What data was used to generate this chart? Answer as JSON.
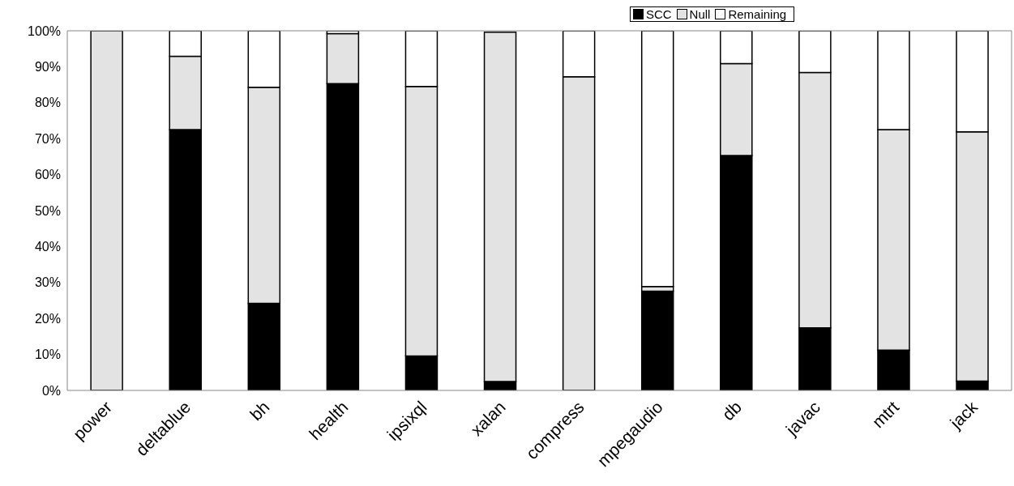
{
  "chart_data": {
    "type": "bar",
    "stacked": true,
    "categories": [
      "power",
      "deltablue",
      "bh",
      "health",
      "ipsixql",
      "xalan",
      "compress",
      "mpegaudio",
      "db",
      "javac",
      "mtrt",
      "jack"
    ],
    "series": [
      {
        "name": "SCC",
        "color": "#000000",
        "values": [
          0,
          72.5,
          24.2,
          85.3,
          9.6,
          2.5,
          null,
          27.6,
          65.3,
          17.4,
          11.2,
          2.6
        ]
      },
      {
        "name": "Null",
        "color": "#e3e3e3",
        "values": [
          100,
          20.4,
          60.1,
          13.9,
          74.9,
          97.1,
          87.2,
          1.3,
          25.6,
          71.0,
          61.3,
          69.3
        ]
      },
      {
        "name": "Remaining",
        "color": "#ffffff",
        "values": [
          0,
          7.1,
          15.7,
          0.8,
          15.5,
          null,
          12.8,
          71.1,
          9.1,
          11.6,
          27.5,
          28.1
        ]
      }
    ],
    "ylim": [
      0,
      100
    ],
    "yticks": [
      {
        "value": 0,
        "label": "0%"
      },
      {
        "value": 10,
        "label": "10%"
      },
      {
        "value": 20,
        "label": "20%"
      },
      {
        "value": 30,
        "label": "30%"
      },
      {
        "value": 40,
        "label": "40%"
      },
      {
        "value": 50,
        "label": "50%"
      },
      {
        "value": 60,
        "label": "60%"
      },
      {
        "value": 70,
        "label": "70%"
      },
      {
        "value": 80,
        "label": "80%"
      },
      {
        "value": 90,
        "label": "90%"
      },
      {
        "value": 100,
        "label": "100%"
      }
    ],
    "grid": false,
    "legend": "top"
  }
}
